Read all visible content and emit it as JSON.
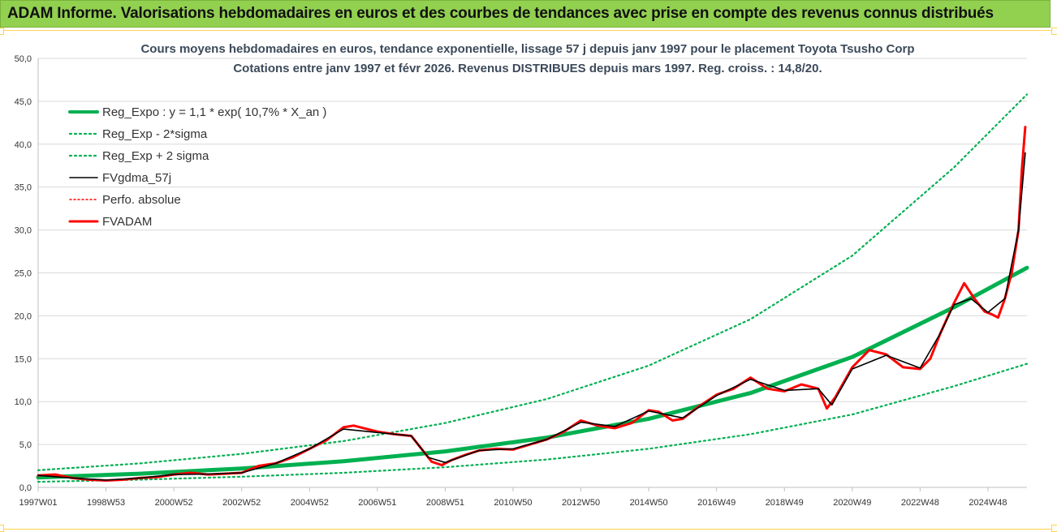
{
  "banner": {
    "title": "ADAM Informe. Valorisations hebdomadaires en euros et des courbes de tendances avec prise en compte des revenus connus distribués"
  },
  "colors": {
    "banner_bg": "#92d050",
    "trend_green": "#00b050",
    "fvadam_red": "#ff0000",
    "fvgdma_black": "#000000",
    "frame_yellow": "#ffd24d"
  },
  "chart_data": {
    "type": "line",
    "title_line1": "Cours moyens hebdomadaires en euros, tendance exponentielle, lissage 57 j depuis janv 1997 pour le placement Toyota Tsusho Corp",
    "title_line2": "Cotations entre janv 1997 et févr 2026. Revenus DISTRIBUES depuis mars 1997. Reg. croiss. : 14,8/20.",
    "ylim": [
      0,
      50
    ],
    "yticks": [
      "0,0",
      "5,0",
      "10,0",
      "15,0",
      "20,0",
      "25,0",
      "30,0",
      "35,0",
      "40,0",
      "45,0",
      "50,0"
    ],
    "xlim": [
      1997.0,
      2026.15
    ],
    "xticks": [
      {
        "label": "1997W01",
        "t": 1997.0
      },
      {
        "label": "1998W53",
        "t": 1999.0
      },
      {
        "label": "2000W52",
        "t": 2001.0
      },
      {
        "label": "2002W52",
        "t": 2003.0
      },
      {
        "label": "2004W52",
        "t": 2005.0
      },
      {
        "label": "2006W51",
        "t": 2007.0
      },
      {
        "label": "2008W51",
        "t": 2009.0
      },
      {
        "label": "2010W50",
        "t": 2011.0
      },
      {
        "label": "2012W50",
        "t": 2013.0
      },
      {
        "label": "2014W50",
        "t": 2015.0
      },
      {
        "label": "2016W49",
        "t": 2017.0
      },
      {
        "label": "2018W49",
        "t": 2019.0
      },
      {
        "label": "2020W49",
        "t": 2021.0
      },
      {
        "label": "2022W48",
        "t": 2023.0
      },
      {
        "label": "2024W48",
        "t": 2025.0
      }
    ],
    "legend": [
      {
        "label": "Reg_Expo : y = 1,1 * exp( 10,7% *  X_an )",
        "style": "thick-green"
      },
      {
        "label": "Reg_Exp - 2*sigma",
        "style": "dotted-green"
      },
      {
        "label": "Reg_Exp + 2 sigma",
        "style": "dotted-green"
      },
      {
        "label": "FVgdma_57j",
        "style": "black"
      },
      {
        "label": "Perfo. absolue",
        "style": "dotted-red"
      },
      {
        "label": "FVADAM",
        "style": "thick-red"
      }
    ],
    "series": [
      {
        "name": "Reg_Expo : y = 1,1 * exp( 10,7% *  X_an )",
        "x": [
          1997.0,
          2000.0,
          2003.0,
          2006.0,
          2009.0,
          2012.0,
          2015.0,
          2018.0,
          2021.0,
          2024.0,
          2026.15
        ],
        "values": [
          1.15,
          1.6,
          2.2,
          3.05,
          4.2,
          5.8,
          8.0,
          11.0,
          15.2,
          21.0,
          25.6
        ]
      },
      {
        "name": "Reg_Exp - 2*sigma",
        "x": [
          1997.0,
          2000.0,
          2003.0,
          2006.0,
          2009.0,
          2012.0,
          2015.0,
          2018.0,
          2021.0,
          2024.0,
          2026.15
        ],
        "values": [
          0.65,
          0.9,
          1.25,
          1.7,
          2.35,
          3.25,
          4.5,
          6.2,
          8.5,
          11.8,
          14.4
        ]
      },
      {
        "name": "Reg_Exp + 2 sigma",
        "x": [
          1997.0,
          2000.0,
          2003.0,
          2006.0,
          2009.0,
          2012.0,
          2015.0,
          2018.0,
          2021.0,
          2024.0,
          2026.15
        ],
        "values": [
          2.0,
          2.8,
          3.9,
          5.4,
          7.5,
          10.3,
          14.2,
          19.6,
          27.0,
          37.3,
          45.8
        ]
      },
      {
        "name": "FVADAM",
        "x": [
          1997.0,
          1997.5,
          1998.0,
          1998.5,
          1999.0,
          1999.5,
          2000.0,
          2000.5,
          2001.0,
          2001.5,
          2002.0,
          2002.5,
          2003.0,
          2003.5,
          2004.0,
          2004.5,
          2005.0,
          2005.5,
          2006.0,
          2006.3,
          2006.7,
          2007.0,
          2007.5,
          2008.0,
          2008.3,
          2008.6,
          2008.9,
          2009.2,
          2009.6,
          2010.0,
          2010.5,
          2011.0,
          2011.5,
          2012.0,
          2012.5,
          2013.0,
          2013.5,
          2014.0,
          2014.5,
          2015.0,
          2015.3,
          2015.7,
          2016.0,
          2016.5,
          2017.0,
          2017.5,
          2018.0,
          2018.5,
          2019.0,
          2019.5,
          2020.0,
          2020.25,
          2020.5,
          2021.0,
          2021.5,
          2022.0,
          2022.5,
          2023.0,
          2023.3,
          2023.6,
          2024.0,
          2024.3,
          2024.6,
          2024.9,
          2025.1,
          2025.3,
          2025.5,
          2025.7,
          2025.9,
          2026.0,
          2026.1
        ],
        "values": [
          1.4,
          1.5,
          1.1,
          0.9,
          0.8,
          0.9,
          1.1,
          1.2,
          1.5,
          1.7,
          1.5,
          1.6,
          1.7,
          2.5,
          2.8,
          3.5,
          4.5,
          5.5,
          7.0,
          7.2,
          6.8,
          6.5,
          6.2,
          6.0,
          4.5,
          3.0,
          2.6,
          3.2,
          3.8,
          4.3,
          4.5,
          4.4,
          5.0,
          5.6,
          6.5,
          7.8,
          7.2,
          6.9,
          7.5,
          9.0,
          8.8,
          7.8,
          8.0,
          9.5,
          10.8,
          11.5,
          12.8,
          11.5,
          11.2,
          12.0,
          11.5,
          9.2,
          10.5,
          14.0,
          16.0,
          15.5,
          14.0,
          13.8,
          15.0,
          18.0,
          21.5,
          23.8,
          22.0,
          20.5,
          20.2,
          19.8,
          22.0,
          25.0,
          30.0,
          37.0,
          42.0
        ]
      },
      {
        "name": "FVgdma_57j",
        "x": [
          1997.0,
          1998.0,
          1999.0,
          2000.0,
          2001.0,
          2002.0,
          2003.0,
          2004.0,
          2005.0,
          2006.0,
          2007.0,
          2008.0,
          2008.5,
          2009.0,
          2010.0,
          2011.0,
          2012.0,
          2013.0,
          2014.0,
          2015.0,
          2016.0,
          2017.0,
          2018.0,
          2019.0,
          2020.0,
          2020.4,
          2021.0,
          2022.0,
          2023.0,
          2023.6,
          2024.0,
          2024.5,
          2025.0,
          2025.5,
          2025.9,
          2026.1
        ],
        "values": [
          1.4,
          1.1,
          0.85,
          1.1,
          1.5,
          1.55,
          1.7,
          2.8,
          4.5,
          6.8,
          6.4,
          6.0,
          3.5,
          2.9,
          4.3,
          4.5,
          5.6,
          7.6,
          7.1,
          8.9,
          8.1,
          10.7,
          12.6,
          11.3,
          11.5,
          9.6,
          13.8,
          15.4,
          13.9,
          18.0,
          21.3,
          22.0,
          20.4,
          22.0,
          30.0,
          39.0
        ]
      }
    ]
  }
}
